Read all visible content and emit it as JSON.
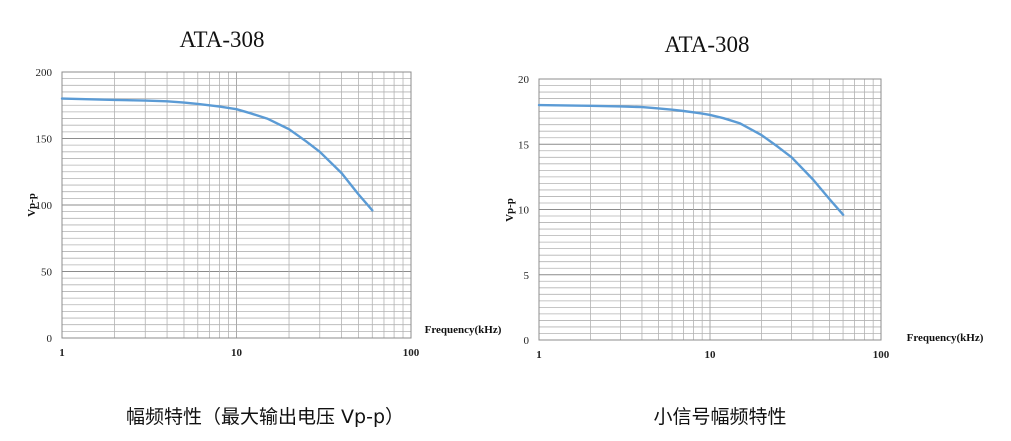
{
  "chart_data": [
    {
      "type": "line",
      "title": "ATA-308",
      "xlabel": "Frequency(kHz)",
      "ylabel": "Vp-p",
      "x_scale": "log",
      "xlim": [
        1,
        100
      ],
      "ylim": [
        0,
        200
      ],
      "x_ticks": [
        "1",
        "10",
        "100"
      ],
      "y_ticks": [
        "0",
        "50",
        "100",
        "150",
        "200"
      ],
      "grid": true,
      "line_color": "#5b9bd5",
      "series": [
        {
          "x": [
            1,
            2,
            3,
            4,
            5,
            6,
            7,
            8,
            9,
            10,
            12,
            15,
            20,
            25,
            30,
            40,
            50,
            60
          ],
          "y": [
            180,
            179,
            178.5,
            178,
            177,
            176,
            175,
            174,
            173,
            172,
            169,
            165,
            157,
            148,
            140,
            124,
            108,
            96
          ]
        }
      ],
      "caption": "幅频特性（最大输出电压 Vp-p）"
    },
    {
      "type": "line",
      "title": "ATA-308",
      "xlabel": "Frequency(kHz)",
      "ylabel": "Vp-p",
      "x_scale": "log",
      "xlim": [
        1,
        100
      ],
      "ylim": [
        0,
        20
      ],
      "x_ticks": [
        "1",
        "10",
        "100"
      ],
      "y_ticks": [
        "0",
        "5",
        "10",
        "15",
        "20"
      ],
      "grid": true,
      "line_color": "#5b9bd5",
      "series": [
        {
          "x": [
            1,
            2,
            3,
            4,
            5,
            6,
            7,
            8,
            9,
            10,
            12,
            15,
            20,
            25,
            30,
            40,
            50,
            60
          ],
          "y": [
            18,
            17.95,
            17.9,
            17.85,
            17.75,
            17.65,
            17.55,
            17.45,
            17.35,
            17.25,
            17,
            16.6,
            15.7,
            14.8,
            14,
            12.3,
            10.8,
            9.6
          ]
        }
      ],
      "caption": "小信号幅频特性"
    }
  ]
}
